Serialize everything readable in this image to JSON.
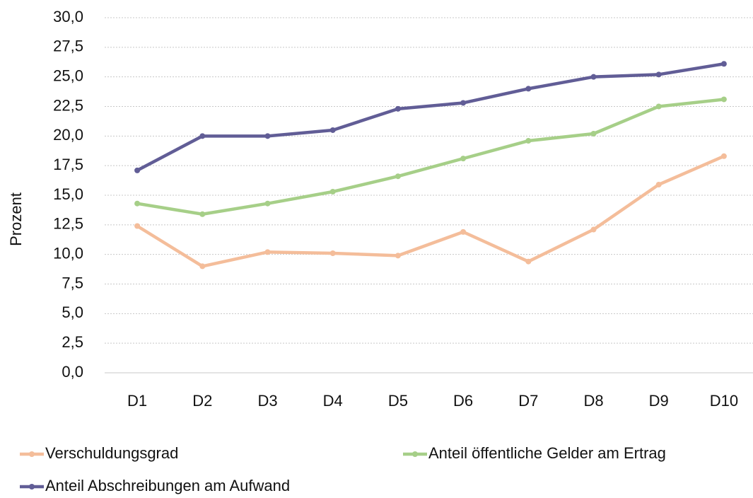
{
  "chart_data": {
    "type": "line",
    "y_label": "Prozent",
    "categories": [
      "D1",
      "D2",
      "D3",
      "D4",
      "D5",
      "D6",
      "D7",
      "D8",
      "D9",
      "D10"
    ],
    "series": [
      {
        "name": "Verschuldungsgrad",
        "color": "#f4bd9a",
        "values": [
          12.4,
          9.0,
          10.2,
          10.1,
          9.9,
          11.9,
          9.4,
          12.1,
          15.9,
          18.3
        ]
      },
      {
        "name": "Anteil öffentliche Gelder am Ertrag",
        "color": "#a6cf88",
        "values": [
          14.3,
          13.4,
          14.3,
          15.3,
          16.6,
          18.1,
          19.6,
          20.2,
          22.5,
          23.1
        ]
      },
      {
        "name": "Anteil Abschreibungen am Aufwand",
        "color": "#615d96",
        "values": [
          17.1,
          20.0,
          20.0,
          20.5,
          22.3,
          22.8,
          24.0,
          25.0,
          25.2,
          26.1
        ]
      }
    ],
    "ylim": [
      0,
      30
    ],
    "yticks": [
      {
        "value": 0,
        "label": "0,0"
      },
      {
        "value": 2.5,
        "label": "2,5"
      },
      {
        "value": 5,
        "label": "5,0"
      },
      {
        "value": 7.5,
        "label": "7,5"
      },
      {
        "value": 10,
        "label": "10,0"
      },
      {
        "value": 12.5,
        "label": "12,5"
      },
      {
        "value": 15,
        "label": "15,0"
      },
      {
        "value": 17.5,
        "label": "17,5"
      },
      {
        "value": 20,
        "label": "20,0"
      },
      {
        "value": 22.5,
        "label": "22,5"
      },
      {
        "value": 25,
        "label": "25,0"
      },
      {
        "value": 27.5,
        "label": "27,5"
      },
      {
        "value": 30,
        "label": "30,0"
      }
    ],
    "grid": true
  }
}
